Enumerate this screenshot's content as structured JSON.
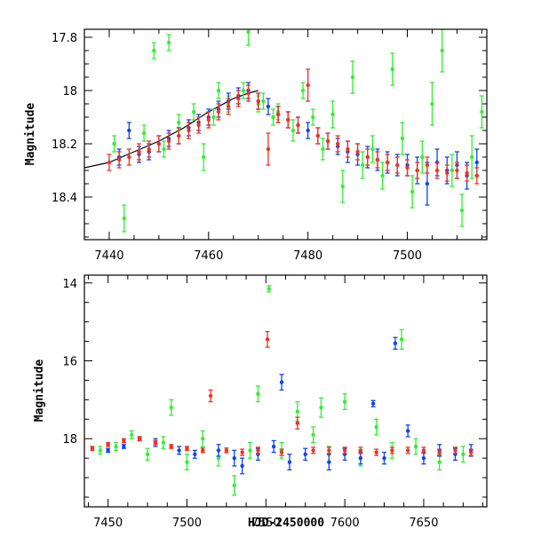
{
  "colors": {
    "green": "#33ee33",
    "blue": "#1144ee",
    "red": "#ee3322",
    "frame": "#000000",
    "model": "#000000"
  },
  "chart_data": [
    {
      "type": "scatter",
      "panel": "top",
      "title": "",
      "xlabel": "",
      "ylabel": "Magnitude",
      "xlim": [
        7435,
        7516
      ],
      "ylim": [
        18.56,
        17.77
      ],
      "y_inverted": true,
      "x_ticks": [
        7440,
        7460,
        7480,
        7500
      ],
      "y_ticks": [
        17.8,
        18,
        18.2,
        18.4
      ],
      "x_tick_labels": [
        "7440",
        "7460",
        "7480",
        "7500"
      ],
      "y_tick_labels": [
        "17.8",
        "18",
        "18.2",
        "18.4"
      ],
      "model_curve": {
        "x": [
          7435,
          7440,
          7445,
          7450,
          7455,
          7460,
          7465,
          7468,
          7470
        ],
        "y": [
          18.29,
          18.27,
          18.23,
          18.19,
          18.14,
          18.08,
          18.03,
          18.01,
          18.0
        ]
      },
      "series": [
        {
          "color_key": "green",
          "x": [
            7441,
            7443,
            7447,
            7449,
            7451,
            7452,
            7454,
            7457,
            7459,
            7461,
            7462,
            7464,
            7467,
            7468,
            7470,
            7471,
            7473,
            7474,
            7477,
            7479,
            7481,
            7483,
            7485,
            7487,
            7489,
            7491,
            7493,
            7495,
            7497,
            7499,
            7501,
            7503,
            7505,
            7507,
            7509,
            7511,
            7513,
            7515
          ],
          "y": [
            18.2,
            18.48,
            18.16,
            17.85,
            18.22,
            17.82,
            18.12,
            18.08,
            18.25,
            18.1,
            18.0,
            18.05,
            18.0,
            17.78,
            18.05,
            18.04,
            18.1,
            18.08,
            18.15,
            18.0,
            18.1,
            18.22,
            18.09,
            18.36,
            17.95,
            18.28,
            18.22,
            18.32,
            17.92,
            18.18,
            18.38,
            18.25,
            18.05,
            17.85,
            18.3,
            18.45,
            18.25,
            18.08
          ],
          "err": [
            0.03,
            0.05,
            0.03,
            0.03,
            0.03,
            0.03,
            0.03,
            0.03,
            0.05,
            0.03,
            0.03,
            0.03,
            0.03,
            0.05,
            0.03,
            0.03,
            0.03,
            0.03,
            0.04,
            0.03,
            0.03,
            0.04,
            0.05,
            0.06,
            0.06,
            0.05,
            0.05,
            0.05,
            0.06,
            0.06,
            0.06,
            0.06,
            0.08,
            0.08,
            0.06,
            0.06,
            0.08,
            0.06
          ]
        },
        {
          "color_key": "blue",
          "x": [
            7442,
            7444,
            7446,
            7448,
            7450,
            7452,
            7454,
            7456,
            7458,
            7460,
            7462,
            7464,
            7466,
            7468,
            7470,
            7472,
            7474,
            7476,
            7478,
            7480,
            7482,
            7484,
            7486,
            7488,
            7490,
            7492,
            7494,
            7496,
            7498,
            7500,
            7502,
            7504,
            7506,
            7508,
            7510,
            7512,
            7514
          ],
          "y": [
            18.25,
            18.15,
            18.24,
            18.23,
            18.2,
            18.18,
            18.17,
            18.14,
            18.12,
            18.1,
            18.07,
            18.04,
            18.02,
            18.0,
            18.04,
            18.06,
            18.09,
            18.11,
            18.13,
            18.15,
            18.17,
            18.19,
            18.21,
            18.23,
            18.24,
            18.25,
            18.26,
            18.27,
            18.28,
            18.28,
            18.3,
            18.35,
            18.27,
            18.3,
            18.28,
            18.32,
            18.27
          ],
          "err": [
            0.03,
            0.03,
            0.03,
            0.03,
            0.03,
            0.03,
            0.03,
            0.03,
            0.03,
            0.03,
            0.03,
            0.03,
            0.03,
            0.03,
            0.03,
            0.03,
            0.03,
            0.03,
            0.03,
            0.03,
            0.03,
            0.03,
            0.03,
            0.04,
            0.04,
            0.04,
            0.04,
            0.04,
            0.04,
            0.04,
            0.05,
            0.08,
            0.05,
            0.05,
            0.05,
            0.05,
            0.05
          ]
        },
        {
          "color_key": "red",
          "x": [
            7440,
            7442,
            7444,
            7446,
            7448,
            7450,
            7452,
            7454,
            7456,
            7458,
            7460,
            7462,
            7464,
            7466,
            7468,
            7470,
            7472,
            7474,
            7476,
            7478,
            7480,
            7482,
            7484,
            7486,
            7488,
            7490,
            7492,
            7494,
            7496,
            7498,
            7500,
            7502,
            7504,
            7506,
            7508,
            7510,
            7512,
            7514
          ],
          "y": [
            18.27,
            18.26,
            18.25,
            18.23,
            18.22,
            18.2,
            18.19,
            18.17,
            18.15,
            18.13,
            18.11,
            18.08,
            18.06,
            18.03,
            18.01,
            18.04,
            18.22,
            18.09,
            18.11,
            18.13,
            17.98,
            18.17,
            18.19,
            18.2,
            18.22,
            18.23,
            18.25,
            18.26,
            18.27,
            18.28,
            18.29,
            18.3,
            18.28,
            18.3,
            18.31,
            18.3,
            18.31,
            18.32
          ],
          "err": [
            0.03,
            0.03,
            0.03,
            0.03,
            0.03,
            0.03,
            0.03,
            0.03,
            0.03,
            0.03,
            0.03,
            0.03,
            0.03,
            0.03,
            0.03,
            0.03,
            0.06,
            0.03,
            0.03,
            0.03,
            0.06,
            0.03,
            0.03,
            0.03,
            0.03,
            0.03,
            0.03,
            0.03,
            0.03,
            0.03,
            0.03,
            0.03,
            0.03,
            0.03,
            0.03,
            0.03,
            0.03,
            0.03
          ]
        }
      ]
    },
    {
      "type": "scatter",
      "panel": "bottom",
      "title": "",
      "xlabel": "HJD-2450000",
      "ylabel": "Magnitude",
      "xlim": [
        7435,
        7690
      ],
      "ylim": [
        19.75,
        13.8
      ],
      "y_inverted": true,
      "x_ticks": [
        7450,
        7500,
        7550,
        7600,
        7650
      ],
      "y_ticks": [
        14,
        16,
        18
      ],
      "x_tick_labels": [
        "7450",
        "7500",
        "7550",
        "7600",
        "7650"
      ],
      "y_tick_labels": [
        "14",
        "16",
        "18"
      ],
      "series": [
        {
          "color_key": "green",
          "x": [
            7445,
            7455,
            7465,
            7475,
            7485,
            7490,
            7500,
            7510,
            7520,
            7530,
            7540,
            7545,
            7552,
            7560,
            7570,
            7580,
            7585,
            7590,
            7600,
            7610,
            7620,
            7630,
            7636,
            7645,
            7660,
            7675
          ],
          "y": [
            18.3,
            18.2,
            17.9,
            18.4,
            18.1,
            17.2,
            18.6,
            18.0,
            18.5,
            19.2,
            18.3,
            16.85,
            14.15,
            18.3,
            17.3,
            17.9,
            17.2,
            18.4,
            17.05,
            18.5,
            17.7,
            18.3,
            15.45,
            18.2,
            18.6,
            18.4
          ],
          "err": [
            0.1,
            0.1,
            0.1,
            0.15,
            0.15,
            0.2,
            0.2,
            0.2,
            0.2,
            0.25,
            0.2,
            0.2,
            0.08,
            0.2,
            0.25,
            0.2,
            0.25,
            0.2,
            0.2,
            0.2,
            0.2,
            0.2,
            0.25,
            0.2,
            0.2,
            0.2
          ]
        },
        {
          "color_key": "blue",
          "x": [
            7450,
            7460,
            7470,
            7480,
            7495,
            7505,
            7520,
            7530,
            7535,
            7545,
            7555,
            7560,
            7565,
            7575,
            7590,
            7600,
            7610,
            7618,
            7625,
            7632,
            7640,
            7650,
            7660,
            7670,
            7680
          ],
          "y": [
            18.3,
            18.2,
            18.0,
            18.1,
            18.3,
            18.4,
            18.3,
            18.5,
            18.7,
            18.4,
            18.2,
            16.55,
            18.6,
            18.4,
            18.6,
            18.4,
            18.5,
            17.1,
            18.5,
            15.55,
            17.8,
            18.5,
            18.3,
            18.4,
            18.3
          ],
          "err": [
            0.05,
            0.05,
            0.05,
            0.1,
            0.1,
            0.1,
            0.15,
            0.2,
            0.2,
            0.15,
            0.15,
            0.2,
            0.2,
            0.15,
            0.2,
            0.15,
            0.15,
            0.08,
            0.15,
            0.15,
            0.15,
            0.15,
            0.15,
            0.15,
            0.15
          ]
        },
        {
          "color_key": "red",
          "x": [
            7440,
            7450,
            7460,
            7470,
            7480,
            7490,
            7500,
            7510,
            7515,
            7525,
            7535,
            7545,
            7551,
            7560,
            7570,
            7580,
            7590,
            7600,
            7610,
            7620,
            7630,
            7640,
            7650,
            7660,
            7670,
            7680
          ],
          "y": [
            18.25,
            18.15,
            18.05,
            18.0,
            18.1,
            18.2,
            18.25,
            18.3,
            16.9,
            18.3,
            18.35,
            18.3,
            15.45,
            18.35,
            17.6,
            18.3,
            18.3,
            18.3,
            18.3,
            18.35,
            18.3,
            18.3,
            18.3,
            18.35,
            18.3,
            18.35
          ],
          "err": [
            0.05,
            0.05,
            0.05,
            0.05,
            0.05,
            0.05,
            0.05,
            0.06,
            0.15,
            0.06,
            0.08,
            0.08,
            0.2,
            0.08,
            0.15,
            0.08,
            0.08,
            0.08,
            0.08,
            0.08,
            0.08,
            0.08,
            0.08,
            0.08,
            0.08,
            0.08
          ]
        }
      ]
    }
  ]
}
